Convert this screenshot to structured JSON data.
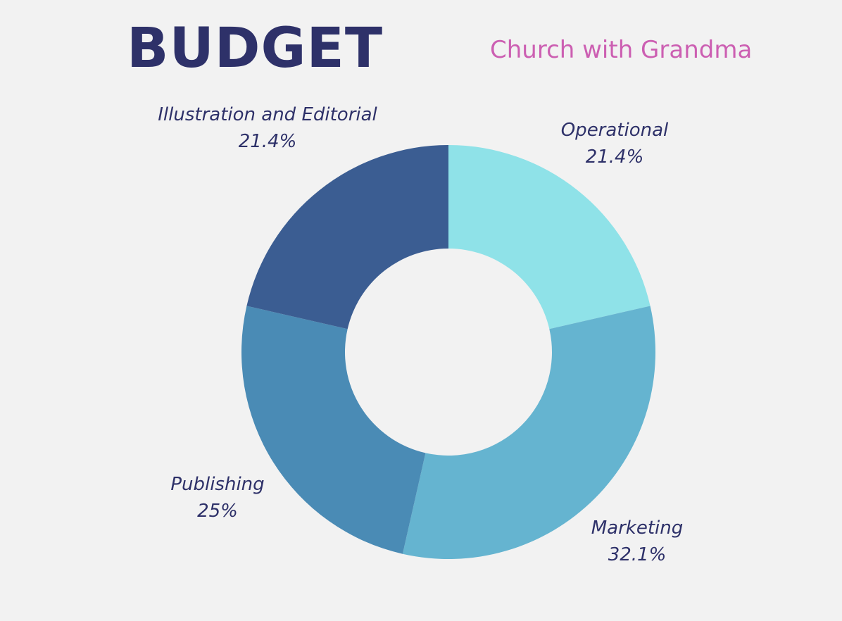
{
  "header": {
    "title": "BUDGET",
    "subtitle": "Church with Grandma"
  },
  "colors": {
    "title": "#2e3169",
    "subtitle": "#cc5fb2",
    "label": "#2e3169",
    "background": "#f2f2f2"
  },
  "chart_data": {
    "type": "pie",
    "donut": true,
    "start_angle_deg": 0,
    "direction": "clockwise",
    "slices": [
      {
        "label": "Operational",
        "value": 21.4,
        "display": "21.4%",
        "color": "#8fe2e8"
      },
      {
        "label": "Marketing",
        "value": 32.1,
        "display": "32.1%",
        "color": "#65b4d0"
      },
      {
        "label": "Publishing",
        "value": 25,
        "display": "25%",
        "color": "#4a8bb5"
      },
      {
        "label": "Illustration and Editorial",
        "value": 21.4,
        "display": "21.4%",
        "color": "#3b5d92"
      }
    ],
    "legend": "none"
  }
}
